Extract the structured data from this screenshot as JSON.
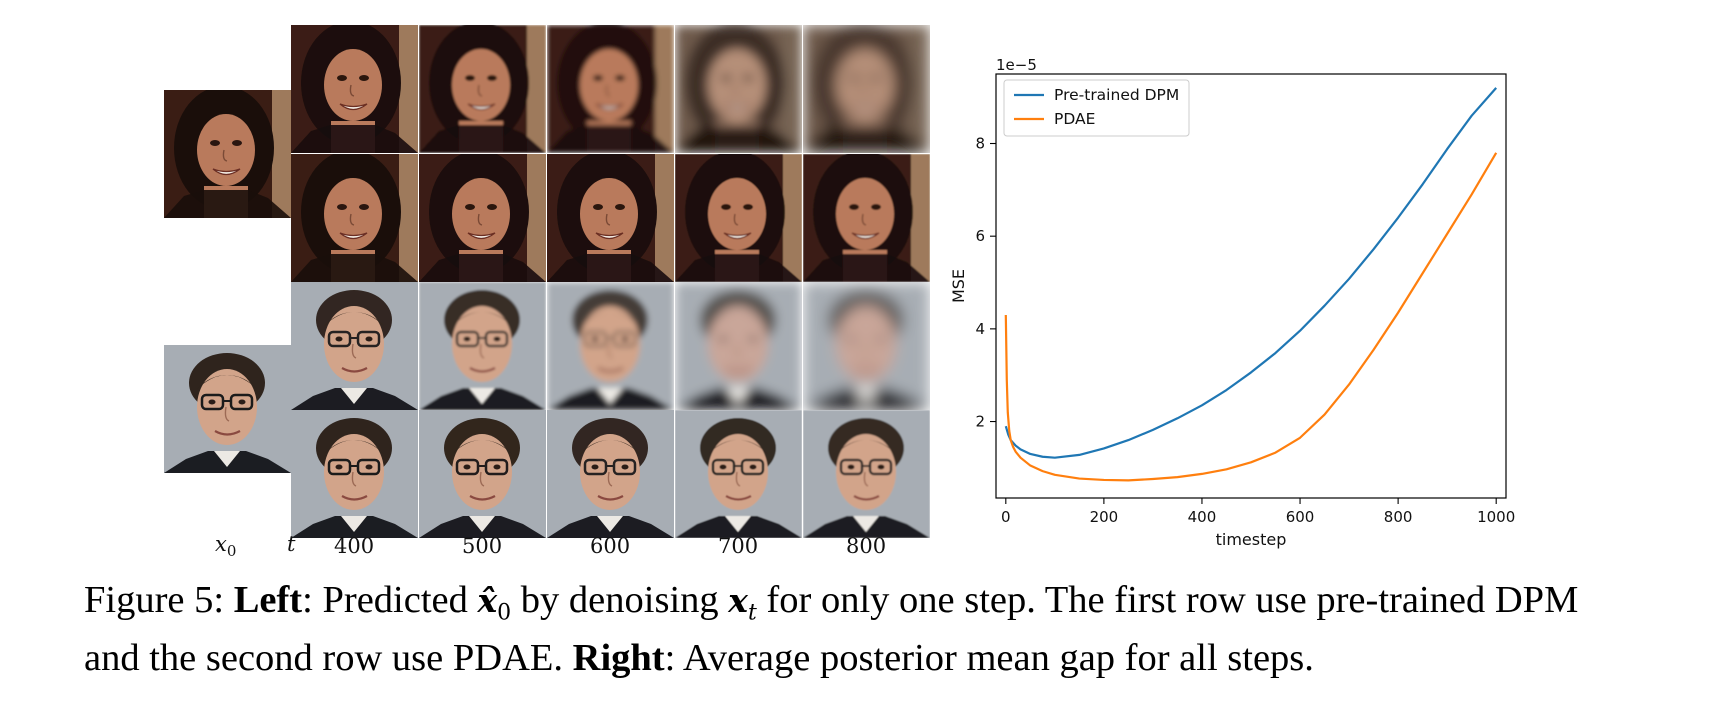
{
  "left_panel": {
    "x0_label": "x",
    "x0_sub": "0",
    "t_label": "t",
    "timesteps": [
      "400",
      "500",
      "600",
      "700",
      "800"
    ],
    "subjects": [
      {
        "name": "woman",
        "rows": [
          {
            "method": "pre-trained DPM",
            "blur_levels": [
              0.05,
              0.15,
              0.35,
              0.75,
              1.0
            ]
          },
          {
            "method": "PDAE",
            "blur_levels": [
              0.0,
              0.02,
              0.05,
              0.08,
              0.1
            ]
          }
        ]
      },
      {
        "name": "man",
        "rows": [
          {
            "method": "pre-trained DPM",
            "blur_levels": [
              0.05,
              0.15,
              0.4,
              0.75,
              1.0
            ]
          },
          {
            "method": "PDAE",
            "blur_levels": [
              0.0,
              0.02,
              0.05,
              0.08,
              0.1
            ]
          }
        ]
      }
    ]
  },
  "chart_data": {
    "type": "line",
    "xlabel": "timestep",
    "ylabel": "MSE",
    "y_multiplier_label": "1e−5",
    "xlim": [
      -20,
      1020
    ],
    "ylim": [
      0.35,
      9.5
    ],
    "xticks": [
      0,
      200,
      400,
      600,
      800,
      1000
    ],
    "yticks": [
      2,
      4,
      6,
      8
    ],
    "legend_position": "top-left",
    "series": [
      {
        "name": "Pre-trained DPM",
        "color": "#1f77b4",
        "x": [
          0,
          5,
          10,
          20,
          30,
          50,
          75,
          100,
          150,
          200,
          250,
          300,
          350,
          400,
          450,
          500,
          550,
          600,
          650,
          700,
          750,
          800,
          850,
          900,
          950,
          1000
        ],
        "y": [
          1.9,
          1.72,
          1.6,
          1.48,
          1.4,
          1.3,
          1.24,
          1.22,
          1.28,
          1.42,
          1.6,
          1.82,
          2.07,
          2.35,
          2.68,
          3.06,
          3.48,
          3.96,
          4.5,
          5.08,
          5.72,
          6.4,
          7.12,
          7.88,
          8.6,
          9.2
        ]
      },
      {
        "name": "PDAE",
        "color": "#ff7f0e",
        "x": [
          0,
          2,
          4,
          7,
          10,
          15,
          20,
          30,
          50,
          75,
          100,
          150,
          200,
          250,
          300,
          350,
          400,
          450,
          500,
          550,
          600,
          650,
          700,
          750,
          800,
          850,
          900,
          950,
          1000
        ],
        "y": [
          4.3,
          2.9,
          2.2,
          1.8,
          1.6,
          1.45,
          1.35,
          1.22,
          1.05,
          0.93,
          0.85,
          0.77,
          0.74,
          0.73,
          0.76,
          0.8,
          0.87,
          0.97,
          1.12,
          1.33,
          1.65,
          2.15,
          2.8,
          3.55,
          4.35,
          5.2,
          6.05,
          6.9,
          7.8
        ]
      }
    ]
  },
  "caption": {
    "prefix": "Figure 5: ",
    "left_bold": "Left",
    "part1": ": Predicted ",
    "math1": "x̂",
    "math1_sub": "0",
    "part2": " by denoising ",
    "math2": "x",
    "math2_sub": "t",
    "part3": " for only one step. The first row use pre-trained DPM",
    "part4": "and the second row use PDAE. ",
    "right_bold": "Right",
    "part5": ": Average posterior mean gap for all steps."
  },
  "colors": {
    "woman_bg": "#3a1d14",
    "woman_skin": "#b97a5c",
    "woman_hair": "#1a0e0a",
    "man_bg": "#a7adb4",
    "man_skin": "#d2a48a",
    "man_hair": "#2f241d",
    "man_jacket": "#1b1d22"
  }
}
